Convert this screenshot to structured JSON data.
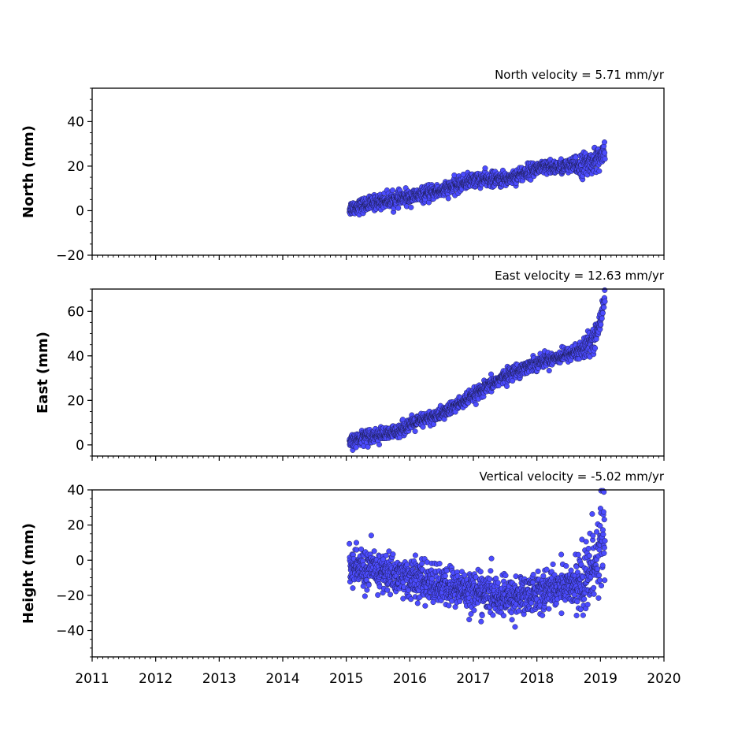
{
  "chart_data": [
    {
      "type": "scatter",
      "title": "North velocity = 5.71 mm/yr",
      "ylabel": "North (mm)",
      "xlim": [
        2011,
        2020
      ],
      "ylim": [
        -20,
        55
      ],
      "yticks": [
        -20,
        0,
        20,
        40
      ],
      "yticklabels": [
        "−20",
        "0",
        "20",
        "40"
      ],
      "marker_color": "#4c4cff",
      "trend": [
        [
          2015.05,
          1
        ],
        [
          2015.5,
          4
        ],
        [
          2016.0,
          6
        ],
        [
          2016.5,
          9
        ],
        [
          2017.0,
          14
        ],
        [
          2017.5,
          14
        ],
        [
          2018.0,
          19
        ],
        [
          2018.5,
          20
        ],
        [
          2018.8,
          21
        ],
        [
          2019.05,
          25
        ]
      ],
      "scatter_sd": 1.6,
      "x_range": [
        2015.05,
        2019.07
      ],
      "series": [
        {
          "x_start": 2015.05,
          "x_end": 2019.07,
          "y_start": 1,
          "y_end": 25
        }
      ]
    },
    {
      "type": "scatter",
      "title": "East velocity = 12.63 mm/yr",
      "ylabel": "East (mm)",
      "xlim": [
        2011,
        2020
      ],
      "ylim": [
        -5,
        70
      ],
      "yticks": [
        0,
        20,
        40,
        60
      ],
      "yticklabels": [
        "0",
        "20",
        "40",
        "60"
      ],
      "marker_color": "#4c4cff",
      "trend": [
        [
          2015.05,
          1
        ],
        [
          2015.3,
          4
        ],
        [
          2015.7,
          5
        ],
        [
          2016.0,
          9
        ],
        [
          2016.5,
          14
        ],
        [
          2017.0,
          22
        ],
        [
          2017.5,
          31
        ],
        [
          2018.0,
          37
        ],
        [
          2018.4,
          40
        ],
        [
          2018.75,
          43
        ],
        [
          2018.95,
          50
        ],
        [
          2019.07,
          67
        ]
      ],
      "scatter_sd": 1.5,
      "x_range": [
        2015.05,
        2019.07
      ],
      "series": [
        {
          "x_start": 2015.05,
          "x_end": 2019.07,
          "y_start": 1,
          "y_end": 67
        }
      ]
    },
    {
      "type": "scatter",
      "title": "Vertical velocity = -5.02 mm/yr",
      "ylabel": "Height (mm)",
      "xlim": [
        2011,
        2020
      ],
      "ylim": [
        -55,
        40
      ],
      "yticks": [
        -40,
        -20,
        0,
        20,
        40
      ],
      "yticklabels": [
        "−40",
        "−20",
        "0",
        "20",
        "40"
      ],
      "xticks": [
        2011,
        2012,
        2013,
        2014,
        2015,
        2016,
        2017,
        2018,
        2019,
        2020
      ],
      "xticklabels": [
        "2011",
        "2012",
        "2013",
        "2014",
        "2015",
        "2016",
        "2017",
        "2018",
        "2019",
        "2020"
      ],
      "marker_color": "#4c4cff",
      "trend": [
        [
          2015.05,
          -4
        ],
        [
          2015.5,
          -6
        ],
        [
          2016.0,
          -10
        ],
        [
          2016.5,
          -15
        ],
        [
          2017.0,
          -17
        ],
        [
          2017.5,
          -22
        ],
        [
          2018.0,
          -18
        ],
        [
          2018.5,
          -14
        ],
        [
          2018.75,
          -16
        ],
        [
          2018.9,
          0
        ],
        [
          2019.07,
          15
        ]
      ],
      "scatter_sd": 5.5,
      "x_range": [
        2015.05,
        2019.07
      ],
      "series": [
        {
          "x_start": 2015.05,
          "x_end": 2019.07,
          "y_start": -4,
          "y_end": 15
        }
      ]
    }
  ]
}
